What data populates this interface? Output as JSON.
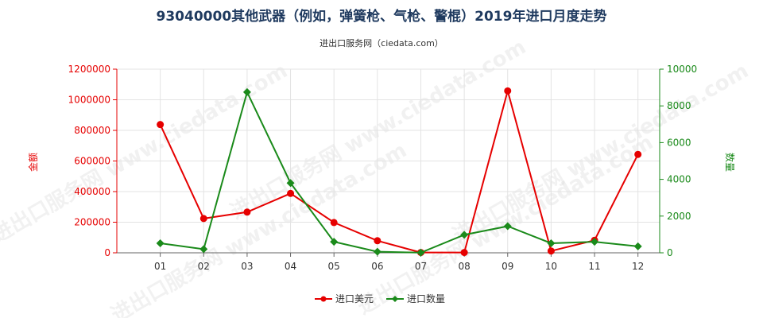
{
  "chart_data": {
    "type": "line",
    "title": "93040000其他武器（例如，弹簧枪、气枪、警棍）2019年进口月度走势",
    "subtitle": "进出口服务网（ciedata.com）",
    "categories": [
      "01",
      "02",
      "03",
      "04",
      "05",
      "06",
      "07",
      "08",
      "09",
      "10",
      "11",
      "12"
    ],
    "y_left": {
      "label": "金额",
      "ylim": [
        0,
        1200000
      ],
      "ticks": [
        "0",
        "200000",
        "400000",
        "600000",
        "800000",
        "1000000",
        "1200000"
      ],
      "color": "#e60000"
    },
    "y_right": {
      "label": "数量",
      "ylim": [
        0,
        10000
      ],
      "ticks": [
        "0",
        "2000",
        "4000",
        "6000",
        "8000",
        "10000"
      ],
      "color": "#1a8a1a"
    },
    "series": [
      {
        "name": "进口美元",
        "axis": "left",
        "color": "#e60000",
        "marker": "circle",
        "values": [
          838000,
          224000,
          266000,
          388000,
          198000,
          79000,
          2000,
          2000,
          1058000,
          12000,
          82000,
          643000
        ]
      },
      {
        "name": "进口数量",
        "axis": "right",
        "color": "#1a8a1a",
        "marker": "diamond",
        "values": [
          520,
          200,
          8750,
          3800,
          600,
          60,
          10,
          980,
          1450,
          520,
          600,
          350
        ]
      }
    ],
    "grid": true,
    "legend": "bottom",
    "watermark": "进出口服务网 www.ciedata.com"
  }
}
